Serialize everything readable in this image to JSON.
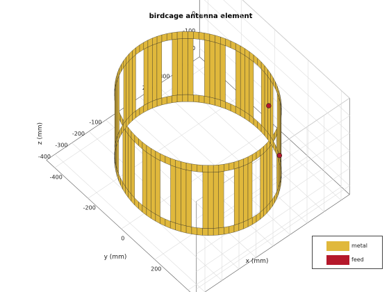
{
  "chart_data": {
    "type": "3d-structure",
    "title": "birdcage antenna element",
    "xlabel": "x (mm)",
    "ylabel": "y (mm)",
    "zlabel": "z (mm)",
    "xlim": [
      -450,
      450
    ],
    "ylim": [
      -450,
      450
    ],
    "zlim": [
      -250,
      300
    ],
    "xticks": [
      -400,
      -200,
      0,
      200,
      400
    ],
    "yticks": [
      -400,
      -300,
      -200,
      -100,
      0,
      100,
      200,
      300,
      400
    ],
    "zticks": [
      -200,
      -100,
      0,
      100,
      200,
      300
    ],
    "grid": true,
    "legend_position": "bottom-right",
    "structure": {
      "radius": 350,
      "z_min": -200,
      "z_max": 200,
      "ring_height": 40,
      "num_rungs": 16,
      "rung_width": 90,
      "feed_points": [
        {
          "x": 75,
          "y": 342,
          "z": 0
        },
        {
          "x": 290,
          "y": 195,
          "z": 0
        }
      ]
    },
    "legend": [
      {
        "label": "metal",
        "color": "#e0b83c"
      },
      {
        "label": "feed",
        "color": "#b5182b"
      }
    ]
  }
}
